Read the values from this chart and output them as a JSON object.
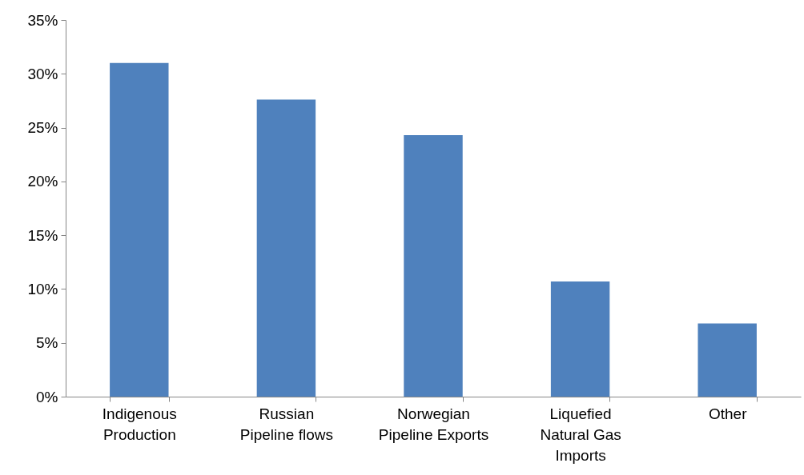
{
  "chart_data": {
    "type": "bar",
    "categories": [
      "Indigenous Production",
      "Russian Pipeline flows",
      "Norwegian Pipeline Exports",
      "Liquefied Natural Gas Imports",
      "Other"
    ],
    "values": [
      31.0,
      27.6,
      24.3,
      10.7,
      6.8
    ],
    "color": "#4f81bd",
    "ylim": [
      0,
      35
    ],
    "yticks": [
      {
        "value": 0,
        "label": "0%"
      },
      {
        "value": 5,
        "label": "5%"
      },
      {
        "value": 10,
        "label": "10%"
      },
      {
        "value": 15,
        "label": "15%"
      },
      {
        "value": 20,
        "label": "20%"
      },
      {
        "value": 25,
        "label": "25%"
      },
      {
        "value": 30,
        "label": "30%"
      },
      {
        "value": 35,
        "label": "35%"
      }
    ],
    "grid": false
  }
}
